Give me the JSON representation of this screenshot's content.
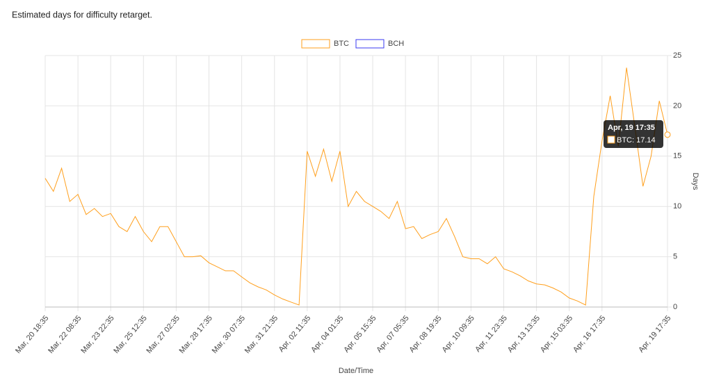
{
  "chart_data": {
    "type": "line",
    "title": "Estimated days for difficulty retarget.",
    "x_label": "Date/Time",
    "y_label": "Days",
    "categories": [
      "Mar, 20 18:35",
      null,
      null,
      null,
      "Mar, 22 08:35",
      null,
      null,
      null,
      "Mar, 23 22:35",
      null,
      null,
      null,
      "Mar, 25 12:35",
      null,
      null,
      null,
      "Mar, 27 02:35",
      null,
      null,
      null,
      "Mar, 28 17:35",
      null,
      null,
      null,
      "Mar, 30 07:35",
      null,
      null,
      null,
      "Mar, 31 21:35",
      null,
      null,
      null,
      "Apr, 02 11:35",
      null,
      null,
      null,
      "Apr, 04 01:35",
      null,
      null,
      null,
      "Apr, 05 15:35",
      null,
      null,
      null,
      "Apr, 07 05:35",
      null,
      null,
      null,
      "Apr, 08 19:35",
      null,
      null,
      null,
      "Apr, 10 09:35",
      null,
      null,
      null,
      "Apr, 11 23:35",
      null,
      null,
      null,
      "Apr, 13 13:35",
      null,
      null,
      null,
      "Apr, 15 03:35",
      null,
      null,
      null,
      "Apr, 16 17:35",
      null,
      null,
      null,
      null,
      null,
      null,
      null,
      "Apr, 19 17:35"
    ],
    "series": [
      {
        "name": "BTC",
        "color": "#ff9f1c",
        "values": [
          12.8,
          11.5,
          13.8,
          10.5,
          11.2,
          9.2,
          9.8,
          9.0,
          9.3,
          8.0,
          7.5,
          9.0,
          7.5,
          6.5,
          8.0,
          8.0,
          6.5,
          5.0,
          5.0,
          5.1,
          4.4,
          4.0,
          3.6,
          3.6,
          3.0,
          2.4,
          2.0,
          1.7,
          1.2,
          0.8,
          0.5,
          0.2,
          15.5,
          13.0,
          15.7,
          12.5,
          15.5,
          10.0,
          11.5,
          10.5,
          10.0,
          9.5,
          8.8,
          10.5,
          7.8,
          8.0,
          6.8,
          7.2,
          7.5,
          8.8,
          7.0,
          5.0,
          4.8,
          4.8,
          4.3,
          5.0,
          3.8,
          3.5,
          3.1,
          2.6,
          2.3,
          2.2,
          1.9,
          1.5,
          0.9,
          0.6,
          0.2,
          11.0,
          16.5,
          21.0,
          16.0,
          23.8,
          18.0,
          12.0,
          15.0,
          20.5,
          17.14
        ]
      },
      {
        "name": "BCH",
        "color": "#3a3af0",
        "values": [
          null,
          null,
          null,
          null,
          null,
          null,
          null,
          null,
          null,
          null,
          null,
          null,
          null,
          null,
          null,
          null,
          null,
          null,
          null,
          null,
          null,
          null,
          null,
          null,
          null,
          null,
          null,
          null,
          null,
          null,
          null,
          null,
          null,
          null,
          null,
          null,
          null,
          null,
          null,
          null,
          null,
          null,
          null,
          null,
          null,
          null,
          null,
          null,
          null,
          null,
          null,
          null,
          null,
          null,
          null,
          null,
          null,
          null,
          null,
          null,
          null,
          null,
          null,
          null,
          null,
          null,
          null,
          null,
          null,
          null,
          null,
          null,
          null,
          null,
          null,
          null,
          null
        ]
      }
    ],
    "ylim": [
      0,
      25
    ],
    "yticks": [
      0,
      5,
      10,
      15,
      20,
      25
    ],
    "y_axis_side": "right",
    "grid": true,
    "legend": "top",
    "tooltip": {
      "title": "Apr, 19 17:35",
      "text": "BTC: 17.14"
    }
  }
}
